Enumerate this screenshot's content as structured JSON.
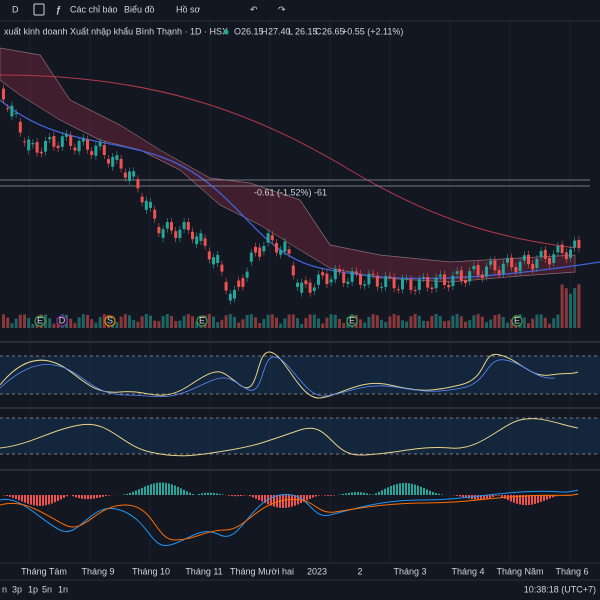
{
  "toolbar": {
    "interval": "D",
    "indicators": "Các chỉ báo",
    "chart": "Biểu đồ",
    "profile": "Hồ sơ"
  },
  "legend": {
    "title": "xuất kinh doanh Xuất nhập khẩu Bình Thạnh · 1D · HSX",
    "ohlc": [
      {
        "label": "O",
        "value": "26.15"
      },
      {
        "label": "H",
        "value": "27.40"
      },
      {
        "label": "L",
        "value": "26.15"
      },
      {
        "label": "C",
        "value": "26.65"
      }
    ],
    "change": "+0.55 (+2.11%)"
  },
  "annotation": "-0.61 (-1.52%) -61",
  "events": [
    "E",
    "D",
    "S",
    "E",
    "E",
    "E"
  ],
  "x_axis": [
    "Tháng Tám",
    "Tháng 9",
    "Tháng 10",
    "Tháng 11",
    "Tháng Mười hai",
    "2023",
    "2",
    "Tháng 3",
    "Tháng 4",
    "Tháng Năm",
    "Tháng 6"
  ],
  "footer": {
    "timeframes": [
      "n",
      "3p",
      "1p",
      "5n",
      "1n"
    ],
    "clock": "10:38:18 (UTC+7)"
  }
}
